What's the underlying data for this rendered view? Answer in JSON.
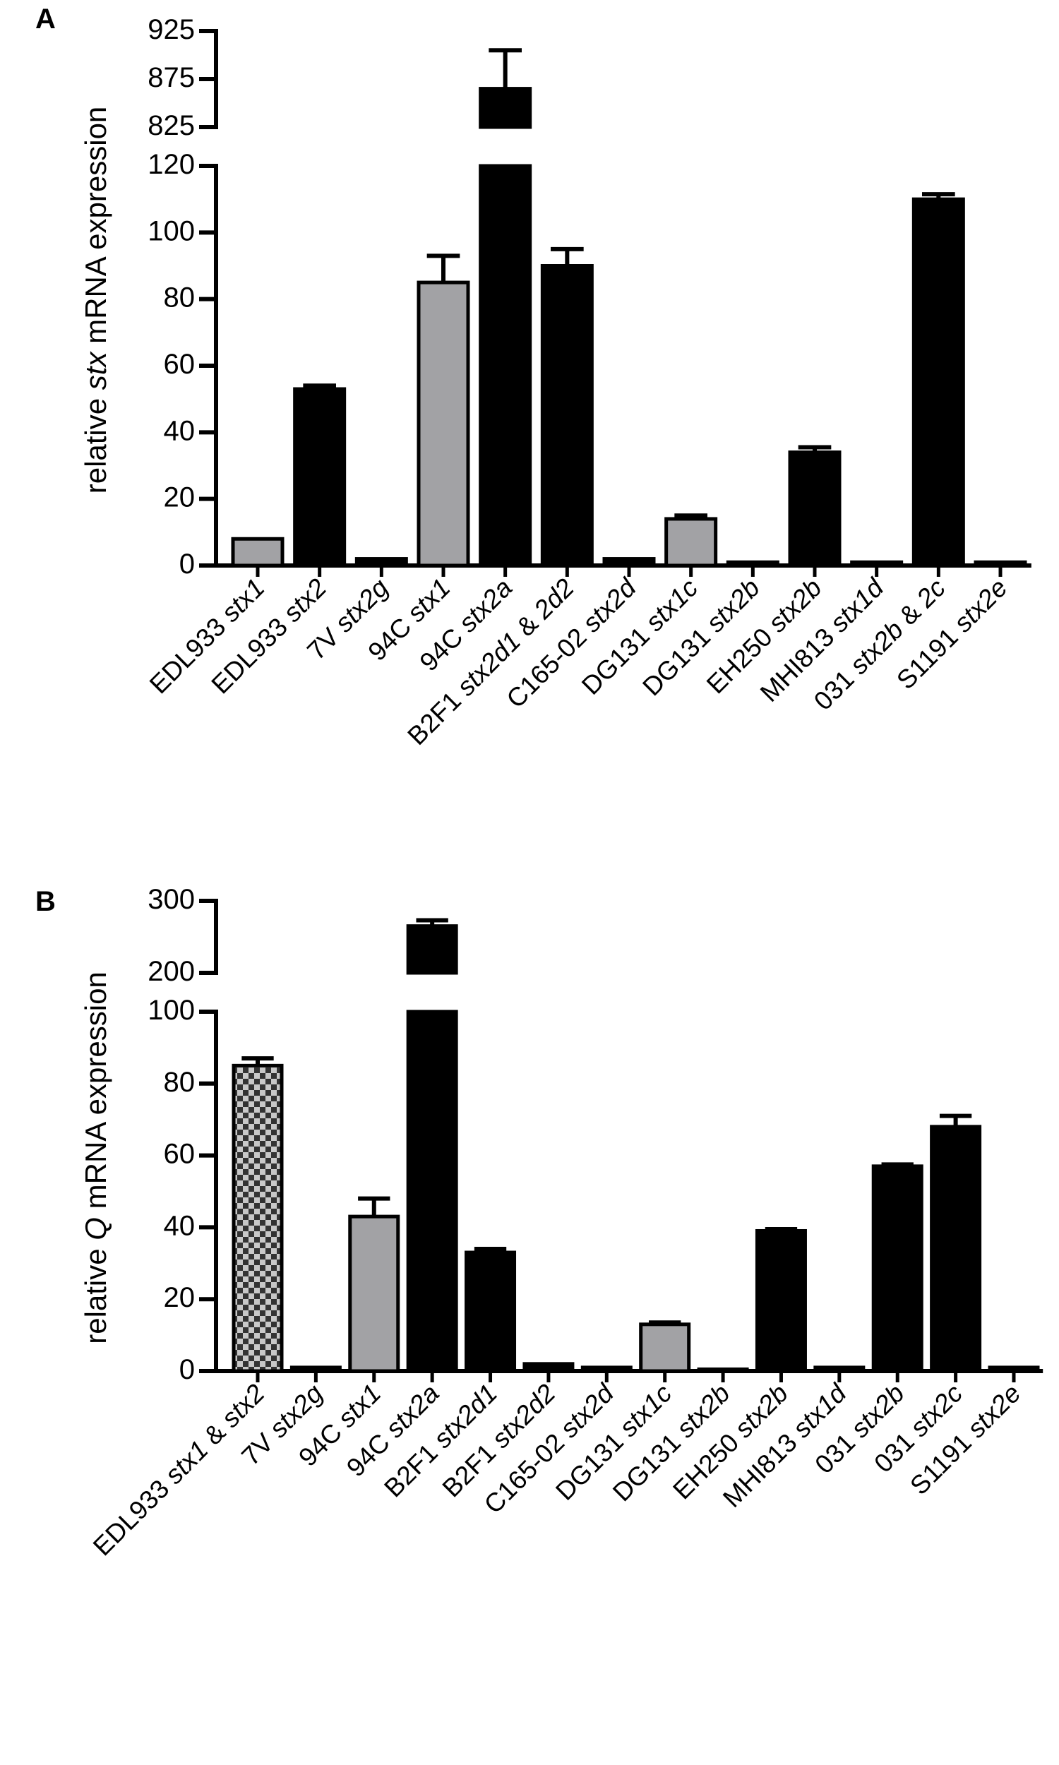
{
  "chart_data": [
    {
      "type": "bar",
      "panel": "A",
      "y_label": "relative stx mRNA expression",
      "categories": [
        "EDL933 stx1",
        "EDL933 stx2",
        "7V stx2g",
        "94C stx1",
        "94C stx2a",
        "B2F1 stx2d1 & 2d2",
        "C165-02 stx2d",
        "DG131 stx1c",
        "DG131 stx2b",
        "EH250 stx2b",
        "MHI813 stx1d",
        "031 stx2b & 2c",
        "S1191 stx2e"
      ],
      "values": [
        8,
        53,
        2,
        85,
        865,
        90,
        2,
        14,
        1,
        34,
        1,
        110,
        1
      ],
      "errors": [
        0,
        1,
        0,
        8,
        40,
        5,
        0,
        1,
        0,
        1.5,
        0,
        1.5,
        0
      ],
      "colors": [
        "#a2a2a5",
        "#000000",
        "#000000",
        "#a2a2a5",
        "#000000",
        "#000000",
        "#000000",
        "#a2a2a5",
        "#000000",
        "#000000",
        "#000000",
        "#000000",
        "#000000"
      ],
      "y_segments": [
        {
          "ylim": [
            0,
            120
          ],
          "yticks": [
            0,
            20,
            40,
            60,
            80,
            100,
            120
          ]
        },
        {
          "ylim": [
            825,
            925
          ],
          "yticks": [
            825,
            875,
            925
          ]
        }
      ]
    },
    {
      "type": "bar",
      "panel": "B",
      "y_label": "relative Q mRNA expression",
      "categories": [
        "EDL933 stx1 & stx2",
        "7V stx2g",
        "94C stx1",
        "94C stx2a",
        "B2F1 stx2d1",
        "B2F1 stx2d2",
        "C165-02 stx2d",
        "DG131 stx1c",
        "DG131 stx2b",
        "EH250 stx2b",
        "MHI813 stx1d",
        "031 stx2b",
        "031 stx2c",
        "S1191 stx2e"
      ],
      "values": [
        85,
        1,
        43,
        265,
        33,
        2,
        1,
        13,
        0.5,
        39,
        1,
        57,
        68,
        1
      ],
      "errors": [
        2,
        0,
        5,
        8,
        1,
        0,
        0,
        0.5,
        0,
        0.5,
        0,
        0.5,
        3,
        0
      ],
      "colors": [
        "#a2a2a5",
        "#000000",
        "#a2a2a5",
        "#000000",
        "#000000",
        "#000000",
        "#000000",
        "#a2a2a5",
        "#000000",
        "#000000",
        "#000000",
        "#000000",
        "#000000",
        "#000000"
      ],
      "checkered": [
        0
      ],
      "y_segments": [
        {
          "ylim": [
            0,
            100
          ],
          "yticks": [
            0,
            20,
            40,
            60,
            80,
            100
          ]
        },
        {
          "ylim": [
            200,
            300
          ],
          "yticks": [
            200,
            300
          ]
        }
      ]
    }
  ]
}
